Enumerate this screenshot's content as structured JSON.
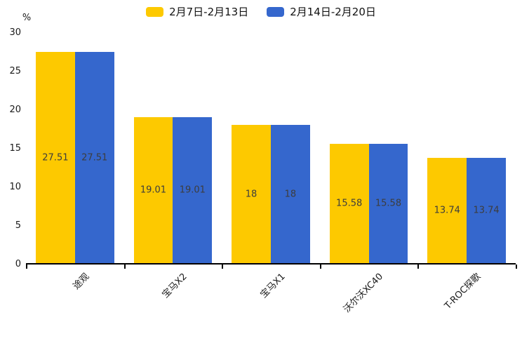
{
  "chart_data": {
    "type": "bar",
    "categories": [
      "途观",
      "宝马X2",
      "宝马X1",
      "沃尔沃XC40",
      "T-ROC探歌"
    ],
    "series": [
      {
        "name": "2月7日-2月13日",
        "color": "#FDC900",
        "values": [
          27.51,
          19.01,
          18,
          15.58,
          13.74
        ]
      },
      {
        "name": "2月14日-2月20日",
        "color": "#3567CD",
        "values": [
          27.51,
          19.01,
          18,
          15.58,
          13.74
        ]
      }
    ],
    "value_labels": [
      [
        "27.51",
        "27.51"
      ],
      [
        "19.01",
        "19.01"
      ],
      [
        "18",
        "18"
      ],
      [
        "15.58",
        "15.58"
      ],
      [
        "13.74",
        "13.74"
      ]
    ],
    "title": "",
    "xlabel": "",
    "ylabel": "%",
    "ylim": [
      0,
      30
    ],
    "yticks": [
      0,
      5,
      10,
      15,
      20,
      25,
      30
    ],
    "grid": false,
    "legend_position": "top",
    "x_label_rotation_deg": 45,
    "axis_color": "#000000",
    "label_text_color": "#3d3d3d"
  }
}
